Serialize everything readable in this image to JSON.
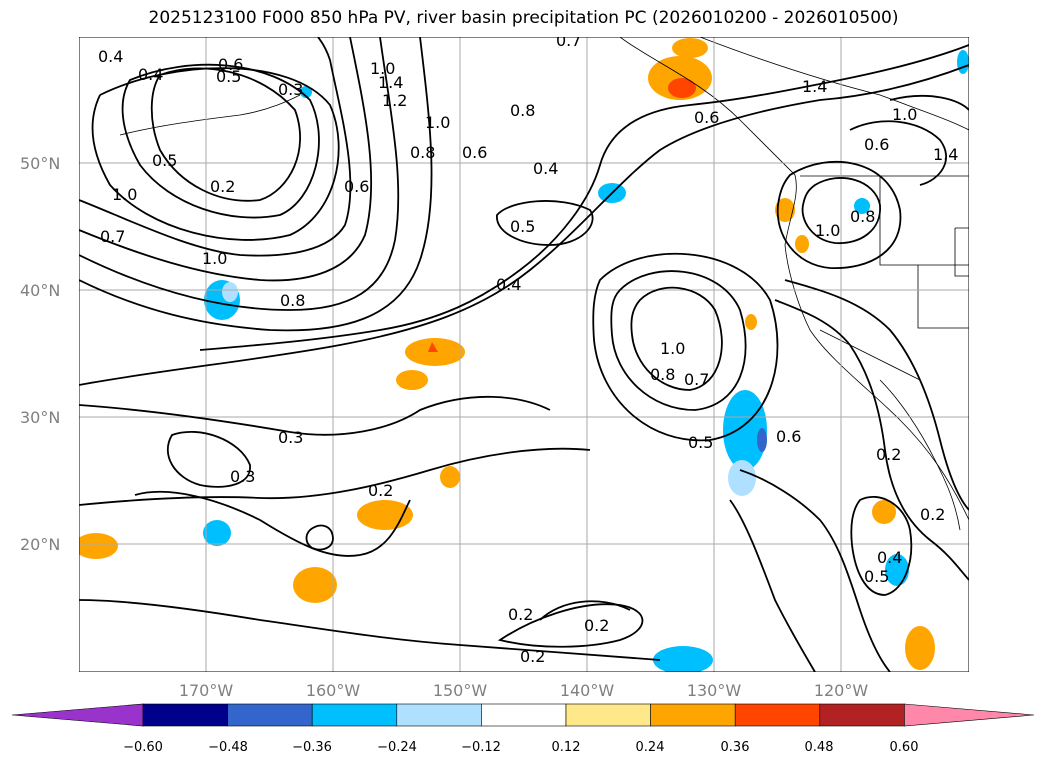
{
  "title": "2025123100 F000 850 hPa PV, river basin precipitation PC (2026010200 - 2026010500)",
  "lat_labels": [
    "50°N",
    "40°N",
    "30°N",
    "20°N"
  ],
  "lon_labels": [
    "170°W",
    "160°W",
    "150°W",
    "140°W",
    "130°W",
    "120°W"
  ],
  "contour_labels": [
    "0.4",
    "0.4",
    "0.6",
    "0.5",
    "0.3",
    "1.4",
    "1.2",
    "1.0",
    "0.8",
    "0.6",
    "0.8",
    "0.7",
    "0.6",
    "1.4",
    "1.0",
    "0.6",
    "1.4",
    "0.5",
    "0.2",
    "1.0",
    "0.7",
    "0.4",
    "0.5",
    "0.6",
    "1.0",
    "0.8",
    "1.0",
    "0.8",
    "0.4",
    "1.0",
    "0.8",
    "0.7",
    "0.5",
    "0.6",
    "0.3",
    "0.3",
    "0.2",
    "0.2",
    "0.2",
    "0.2",
    "0.2",
    "0.2",
    "0.4",
    "0.5",
    "1.0"
  ],
  "colorbar": {
    "ticks": [
      "−0.60",
      "−0.48",
      "−0.36",
      "−0.24",
      "−0.12",
      "0.12",
      "0.24",
      "0.36",
      "0.48",
      "0.60"
    ],
    "colors": [
      "#9933cc",
      "#00008b",
      "#3366cc",
      "#00bfff",
      "#b0e0ff",
      "#ffffff",
      "#ffe88a",
      "#ffa500",
      "#ff4500",
      "#b22222",
      "#ff88aa"
    ]
  }
}
